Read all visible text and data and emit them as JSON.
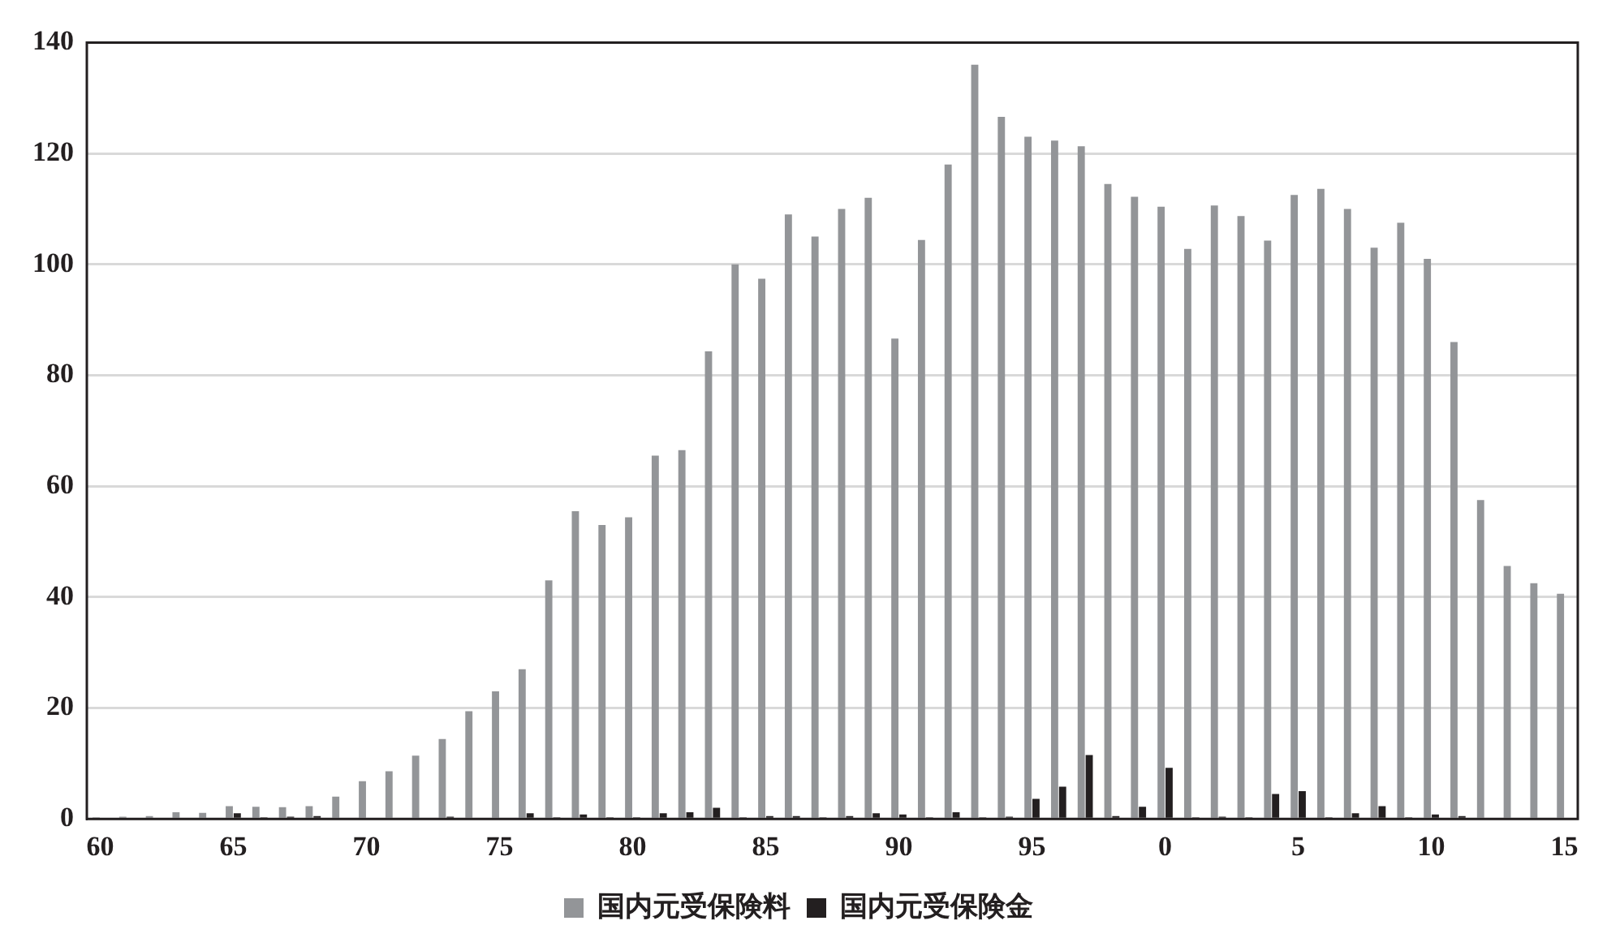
{
  "chart_data": {
    "type": "bar",
    "categories": [
      "60",
      null,
      null,
      null,
      null,
      "65",
      null,
      null,
      null,
      null,
      "70",
      null,
      null,
      null,
      null,
      "75",
      null,
      null,
      null,
      null,
      "80",
      null,
      null,
      null,
      null,
      "85",
      null,
      null,
      null,
      null,
      "90",
      null,
      null,
      null,
      null,
      "95",
      null,
      null,
      null,
      null,
      "0",
      null,
      null,
      null,
      null,
      "5",
      null,
      null,
      null,
      null,
      "10",
      null,
      null,
      null,
      null,
      "15"
    ],
    "series": [
      {
        "name": "国内元受保険料",
        "color": "#939598",
        "values": [
          0.3,
          0.4,
          0.5,
          1.2,
          1.1,
          2.3,
          2.2,
          2.1,
          2.3,
          4,
          6.8,
          8.6,
          11.4,
          14.4,
          19.4,
          23,
          27,
          43,
          55.5,
          53,
          54.4,
          65.5,
          66.5,
          84.3,
          100,
          97.4,
          109,
          105,
          110,
          112,
          86.6,
          104.4,
          118,
          136,
          126.6,
          123,
          122.3,
          121.3,
          114.5,
          112.2,
          110.4,
          102.8,
          110.6,
          108.7,
          104.3,
          112.5,
          113.6,
          110,
          103,
          107.5,
          101,
          86,
          57.5,
          45.6,
          42.5,
          40.6
        ]
      },
      {
        "name": "国内元受保険金",
        "color": "#231f20",
        "values": [
          0.2,
          0.2,
          0.2,
          null,
          0.2,
          1,
          0.3,
          0.4,
          0.5,
          0.2,
          0.2,
          0.2,
          0.2,
          0.4,
          0.2,
          0.2,
          1,
          0.3,
          0.8,
          0.3,
          0.3,
          1,
          1.2,
          2,
          0.3,
          0.5,
          0.5,
          0.3,
          0.5,
          1,
          0.8,
          0.3,
          1.2,
          0.3,
          0.4,
          3.6,
          5.8,
          11.5,
          0.5,
          2.2,
          9.2,
          0.3,
          0.4,
          0.3,
          4.5,
          5,
          0.3,
          1,
          2.3,
          0.3,
          0.8,
          0.5,
          0.2,
          0.2,
          0.2,
          0.2
        ]
      }
    ],
    "ylim": [
      0,
      140
    ],
    "yticks": [
      0,
      20,
      40,
      60,
      80,
      100,
      120,
      140
    ],
    "grid": "y",
    "legend": "bottom"
  }
}
